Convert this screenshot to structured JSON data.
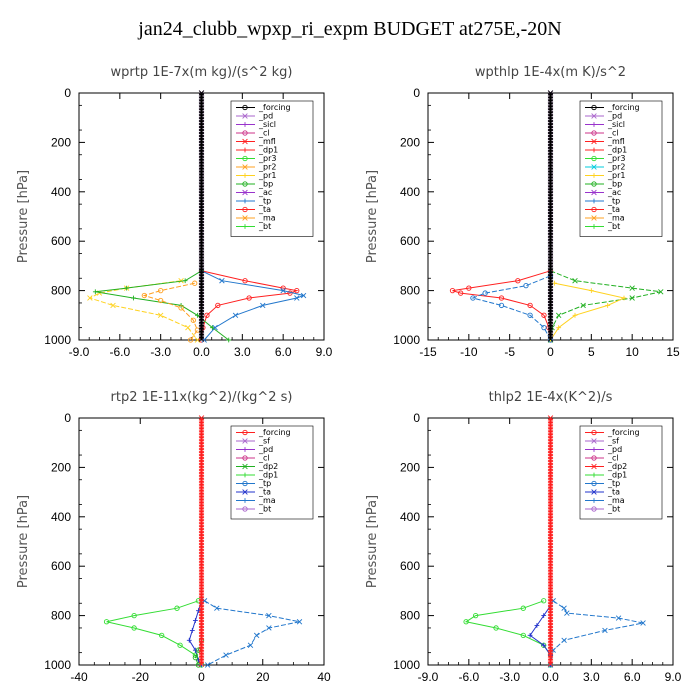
{
  "title": "jan24_clubb_wpxp_ri_expm  BUDGET at275E,-20N",
  "chart_data": [
    {
      "type": "line",
      "title": "wprtp  1E-7x(m kg)/(s^2 kg)",
      "ylabel": "Pressure [hPa]",
      "xlim": [
        -9,
        9
      ],
      "ylim": [
        1000,
        0
      ],
      "xticks": [
        "-9.0",
        "-6.0",
        "-3.0",
        "0.0",
        "3.0",
        "6.0",
        "9.0"
      ],
      "xtick_values": [
        -9,
        -6,
        -3,
        0,
        3,
        6,
        9
      ],
      "yticks": [
        "0",
        "200",
        "400",
        "600",
        "800",
        "1000"
      ],
      "ytick_values": [
        0,
        200,
        400,
        600,
        800,
        1000
      ],
      "legend": [
        "_forcing",
        "_pd",
        "_sicl",
        "_cl",
        "_mfl",
        "_dp1",
        "_pr3",
        "_pr2",
        "_pr1",
        "_bp",
        "_ac",
        "_tp",
        "_ta",
        "_ma",
        "_bt"
      ],
      "series": [
        {
          "name": "_dp1",
          "color": "#ff2020",
          "pressure": [
            720,
            760,
            790,
            800,
            810,
            830,
            860,
            900,
            950,
            1000
          ],
          "values": [
            0,
            3.2,
            6.0,
            7.0,
            6.5,
            3.5,
            1.2,
            0.4,
            0.1,
            0
          ]
        },
        {
          "name": "_pr1",
          "color": "#ffd21f",
          "pressure": [
            760,
            790,
            810,
            830,
            860,
            900,
            950,
            1000
          ],
          "values": [
            -1.5,
            -5.5,
            -7.5,
            -8.2,
            -6.5,
            -3.0,
            -1.0,
            -0.3
          ]
        },
        {
          "name": "_bp",
          "color": "#21b021",
          "pressure": [
            720,
            760,
            790,
            805,
            830,
            860,
            900,
            950,
            1000
          ],
          "values": [
            0,
            -1.2,
            -5.5,
            -7.8,
            -5.0,
            -1.5,
            -0.3,
            0.8,
            2.0
          ]
        },
        {
          "name": "_pr2",
          "color": "#ffa020",
          "pressure": [
            770,
            800,
            820,
            840,
            870,
            920,
            960,
            1000
          ],
          "values": [
            -0.5,
            -3.0,
            -4.2,
            -3.0,
            -1.5,
            -0.6,
            -0.3,
            -0.8
          ]
        },
        {
          "name": "_tp",
          "color": "#2277cc",
          "pressure": [
            720,
            760,
            800,
            820,
            830,
            860,
            900,
            950,
            1000
          ],
          "values": [
            0,
            1.5,
            6.0,
            7.5,
            7.0,
            4.5,
            2.5,
            1.0,
            0.2
          ]
        },
        {
          "name": "_pd",
          "color": "#aa66cc",
          "pressure": [
            0,
            100,
            200,
            300,
            400,
            500,
            600,
            700,
            800,
            900,
            1000
          ],
          "values": [
            0,
            0,
            0,
            0,
            0,
            0,
            0,
            0,
            0,
            0,
            0
          ]
        },
        {
          "name": "_forcing",
          "color": "#000000",
          "pressure": [
            0,
            100,
            200,
            300,
            400,
            500,
            600,
            700,
            800,
            900,
            1000
          ],
          "values": [
            0,
            0,
            0,
            0,
            0,
            0,
            0,
            0,
            0,
            0,
            0
          ]
        }
      ]
    },
    {
      "type": "line",
      "title": "wpthlp  1E-4x(m K)/s^2",
      "ylabel": "Pressure [hPa]",
      "xlim": [
        -15,
        15
      ],
      "ylim": [
        1000,
        0
      ],
      "xticks": [
        "-15",
        "-10",
        "-5",
        "0",
        "5",
        "10",
        "15"
      ],
      "xtick_values": [
        -15,
        -10,
        -5,
        0,
        5,
        10,
        15
      ],
      "yticks": [
        "0",
        "200",
        "400",
        "600",
        "800",
        "1000"
      ],
      "ytick_values": [
        0,
        200,
        400,
        600,
        800,
        1000
      ],
      "legend": [
        "_forcing",
        "_pd",
        "_sicl",
        "_cl",
        "_mfl",
        "_dp1",
        "_pr3",
        "_pr2",
        "_pr1",
        "_bp",
        "_ac",
        "_tp",
        "_ta",
        "_ma",
        "_bt"
      ],
      "series": [
        {
          "name": "_dp1",
          "color": "#ff2020",
          "pressure": [
            720,
            760,
            790,
            800,
            810,
            830,
            860,
            900,
            950,
            1000
          ],
          "values": [
            0,
            -4.0,
            -10.0,
            -12.0,
            -11.0,
            -6.0,
            -2.5,
            -0.8,
            -0.2,
            0
          ]
        },
        {
          "name": "_bp",
          "color": "#21b021",
          "pressure": [
            720,
            760,
            790,
            805,
            830,
            860,
            900,
            950,
            1000
          ],
          "values": [
            0,
            3.0,
            10.0,
            13.5,
            10.0,
            4.0,
            1.0,
            0.2,
            0
          ]
        },
        {
          "name": "_pr1",
          "color": "#ffd21f",
          "pressure": [
            770,
            800,
            830,
            860,
            900,
            950,
            1000
          ],
          "values": [
            0.5,
            5.0,
            9.0,
            7.0,
            3.0,
            1.0,
            0
          ]
        },
        {
          "name": "_tp",
          "color": "#2277cc",
          "pressure": [
            740,
            780,
            810,
            830,
            860,
            900,
            950,
            1000
          ],
          "values": [
            0,
            -3.0,
            -8.0,
            -9.5,
            -6.0,
            -2.5,
            -0.8,
            0
          ]
        },
        {
          "name": "_pd",
          "color": "#aa66cc",
          "pressure": [
            0,
            100,
            200,
            300,
            400,
            500,
            600,
            700,
            800,
            900,
            1000
          ],
          "values": [
            0,
            0,
            0,
            0,
            0,
            0,
            0,
            0,
            0,
            0,
            0
          ]
        },
        {
          "name": "_forcing",
          "color": "#000000",
          "pressure": [
            0,
            100,
            200,
            300,
            400,
            500,
            600,
            700,
            800,
            900,
            1000
          ],
          "values": [
            0,
            0,
            0,
            0,
            0,
            0,
            0,
            0,
            0,
            0,
            0
          ]
        }
      ]
    },
    {
      "type": "line",
      "title": "rtp2  1E-11x(kg^2)/(kg^2 s)",
      "ylabel": "Pressure [hPa]",
      "xlim": [
        -40,
        40
      ],
      "ylim": [
        1000,
        0
      ],
      "xticks": [
        "-40",
        "-20",
        "0",
        "20",
        "40"
      ],
      "xtick_values": [
        -40,
        -20,
        0,
        20,
        40
      ],
      "yticks": [
        "0",
        "200",
        "400",
        "600",
        "800",
        "1000"
      ],
      "ytick_values": [
        0,
        200,
        400,
        600,
        800,
        1000
      ],
      "legend": [
        "_forcing",
        "_sf",
        "_pd",
        "_cl",
        "_dp2",
        "_dp1",
        "_tp",
        "_ta",
        "_ma",
        "_bt"
      ],
      "series": [
        {
          "name": "_dp1",
          "color": "#33dd33",
          "pressure": [
            740,
            770,
            800,
            825,
            850,
            880,
            920,
            960,
            1000
          ],
          "values": [
            -1,
            -8,
            -22,
            -31,
            -22,
            -13,
            -7,
            -2,
            0
          ]
        },
        {
          "name": "_tp",
          "color": "#2277cc",
          "pressure": [
            740,
            770,
            800,
            825,
            850,
            880,
            920,
            960,
            1000
          ],
          "values": [
            1,
            5,
            22,
            32,
            22,
            18,
            16,
            8,
            2
          ]
        },
        {
          "name": "_ta",
          "color": "#2233cc",
          "pressure": [
            740,
            780,
            820,
            860,
            900,
            940,
            980,
            1000
          ],
          "values": [
            0,
            -1,
            -2,
            -3,
            -4,
            -2,
            -1,
            0
          ]
        },
        {
          "name": "_dp2",
          "color": "#21b021",
          "pressure": [
            900,
            940,
            970,
            1000
          ],
          "values": [
            0,
            -1,
            -2,
            -1
          ]
        },
        {
          "name": "_forcing",
          "color": "#ff2020",
          "pressure": [
            0,
            100,
            200,
            300,
            400,
            500,
            600,
            700,
            800,
            900,
            1000
          ],
          "values": [
            0,
            0,
            0,
            0,
            0,
            0,
            0,
            0,
            0,
            0,
            0
          ]
        }
      ]
    },
    {
      "type": "line",
      "title": "thlp2  1E-4x(K^2)/s",
      "ylabel": "Pressure [hPa]",
      "xlim": [
        -9,
        9
      ],
      "ylim": [
        1000,
        0
      ],
      "xticks": [
        "-9.0",
        "-6.0",
        "-3.0",
        "0.0",
        "3.0",
        "6.0",
        "9.0"
      ],
      "xtick_values": [
        -9,
        -6,
        -3,
        0,
        3,
        6,
        9
      ],
      "yticks": [
        "0",
        "200",
        "400",
        "600",
        "800",
        "1000"
      ],
      "ytick_values": [
        0,
        200,
        400,
        600,
        800,
        1000
      ],
      "legend": [
        "_forcing",
        "_sf",
        "_pd",
        "_cl",
        "_dp2",
        "_dp1",
        "_tp",
        "_ta",
        "_ma",
        "_bt"
      ],
      "series": [
        {
          "name": "_dp1",
          "color": "#33dd33",
          "pressure": [
            740,
            770,
            800,
            825,
            850,
            880,
            920,
            960,
            1000
          ],
          "values": [
            -0.5,
            -2.0,
            -5.5,
            -6.2,
            -4.0,
            -2.0,
            -0.5,
            0,
            0
          ]
        },
        {
          "name": "_tp",
          "color": "#2277cc",
          "pressure": [
            740,
            770,
            790,
            810,
            830,
            860,
            900,
            940,
            1000
          ],
          "values": [
            0.2,
            1.0,
            1.2,
            5.0,
            6.8,
            4.0,
            1.0,
            0.2,
            0
          ]
        },
        {
          "name": "_ta",
          "color": "#2233cc",
          "pressure": [
            760,
            800,
            840,
            880,
            920,
            960,
            1000
          ],
          "values": [
            0,
            -0.5,
            -1.0,
            -1.5,
            -0.5,
            0,
            0
          ]
        },
        {
          "name": "_forcing",
          "color": "#ff2020",
          "pressure": [
            0,
            100,
            200,
            300,
            400,
            500,
            600,
            700,
            800,
            900,
            1000
          ],
          "values": [
            0,
            0,
            0,
            0,
            0,
            0,
            0,
            0,
            0,
            0,
            0
          ]
        }
      ]
    }
  ]
}
